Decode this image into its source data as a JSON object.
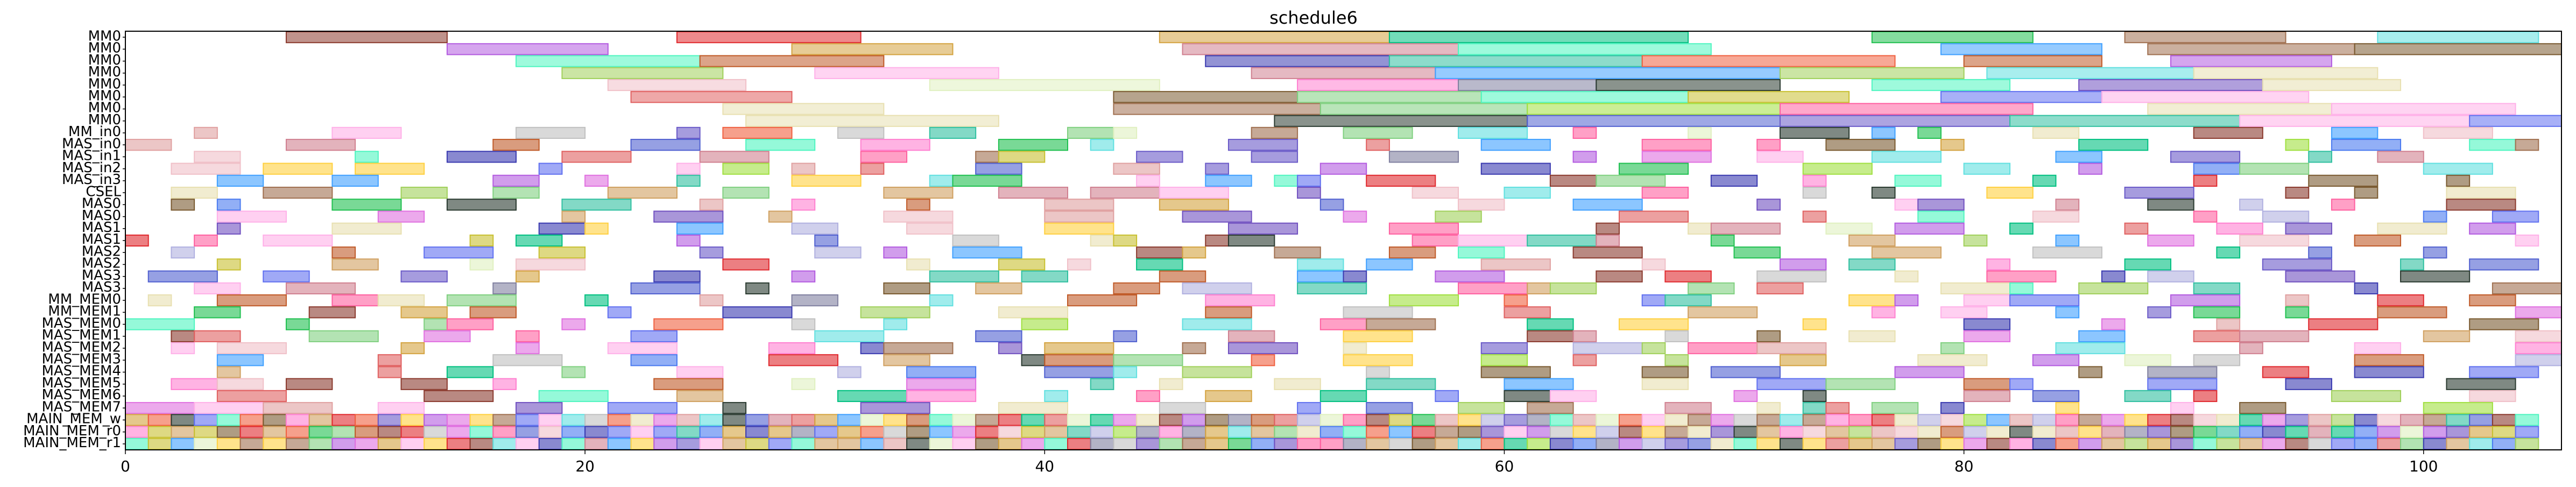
{
  "chart_data": {
    "type": "gantt",
    "title": "schedule6",
    "xlabel": "",
    "ylabel": "",
    "xlim": [
      0,
      106
    ],
    "x_ticks": [
      "0",
      "20",
      "40",
      "60",
      "80",
      "100"
    ],
    "x_tick_values": [
      0,
      20,
      40,
      60,
      80,
      100
    ],
    "grid": false,
    "legend": "none",
    "rows": [
      "MM0",
      "MM0",
      "MM0",
      "MM0",
      "MM0",
      "MM0",
      "MM0",
      "MM0",
      "MM_in0",
      "MAS_in0",
      "MAS_in1",
      "MAS_in2",
      "MAS_in3",
      "CSEL",
      "MAS0",
      "MAS0",
      "MAS1",
      "MAS1",
      "MAS2",
      "MAS2",
      "MAS3",
      "MAS3",
      "MM_MEM0",
      "MM_MEM1",
      "MAS_MEM0",
      "MAS_MEM1",
      "MAS_MEM2",
      "MAS_MEM3",
      "MAS_MEM4",
      "MAS_MEM5",
      "MAS_MEM6",
      "MAS_MEM7",
      "MAIN_MEM_w",
      "MAIN_MEM_r0",
      "MAIN_MEM_r1"
    ],
    "palette": [
      "#8b3a2e",
      "#b35be0",
      "#e0292e",
      "#4ff5c0",
      "#d4a340",
      "#a0d05a",
      "#ffb0e8",
      "#c05a28",
      "#f0c0c8",
      "#3a3ab0",
      "#e06060",
      "#d08090",
      "#ff80d0",
      "#4a7af0",
      "#7a5a30",
      "#e0f0c0",
      "#20c050",
      "#2a3a30",
      "#c8c030",
      "#a0e040",
      "#00c080",
      "#e8e0b0",
      "#5060d0",
      "#6a5ac8",
      "#8080a0",
      "#e0a0a0",
      "#40a0ff",
      "#ff60a0",
      "#60e0e0",
      "#c0c0c0",
      "#a07050",
      "#ffd040",
      "#80d080",
      "#6070f0",
      "#f06040",
      "#7050c0",
      "#30c0a0",
      "#b0b0e0",
      "#d0a060",
      "#e070e0"
    ],
    "bars": [
      [
        0,
        7,
        14,
        0
      ],
      [
        0,
        24,
        32,
        2
      ],
      [
        0,
        45,
        55,
        4
      ],
      [
        0,
        55,
        68,
        20
      ],
      [
        0,
        76,
        83,
        16
      ],
      [
        0,
        87,
        94,
        30
      ],
      [
        0,
        98,
        105,
        28
      ],
      [
        1,
        14,
        21,
        1
      ],
      [
        1,
        29,
        36,
        4
      ],
      [
        1,
        46,
        58,
        11
      ],
      [
        1,
        58,
        69,
        3
      ],
      [
        1,
        79,
        86,
        26
      ],
      [
        1,
        88,
        97,
        30
      ],
      [
        1,
        97,
        106,
        14
      ],
      [
        2,
        17,
        25,
        3
      ],
      [
        2,
        25,
        33,
        7
      ],
      [
        2,
        47,
        55,
        9
      ],
      [
        2,
        55,
        66,
        36
      ],
      [
        2,
        66,
        77,
        34
      ],
      [
        2,
        80,
        86,
        7
      ],
      [
        2,
        89,
        96,
        1
      ],
      [
        3,
        19,
        26,
        5
      ],
      [
        3,
        30,
        38,
        6
      ],
      [
        3,
        49,
        57,
        11
      ],
      [
        3,
        57,
        72,
        26
      ],
      [
        3,
        72,
        80,
        5
      ],
      [
        3,
        81,
        90,
        28
      ],
      [
        3,
        90,
        98,
        21
      ],
      [
        4,
        21,
        27,
        8
      ],
      [
        4,
        35,
        45,
        15
      ],
      [
        4,
        51,
        58,
        12
      ],
      [
        4,
        58,
        64,
        24
      ],
      [
        4,
        64,
        72,
        17
      ],
      [
        4,
        76,
        82,
        3
      ],
      [
        4,
        85,
        93,
        35
      ],
      [
        4,
        93,
        99,
        21
      ],
      [
        5,
        22,
        29,
        10
      ],
      [
        5,
        43,
        51,
        14
      ],
      [
        5,
        51,
        59,
        32
      ],
      [
        5,
        59,
        68,
        3
      ],
      [
        5,
        68,
        75,
        18
      ],
      [
        5,
        79,
        86,
        33
      ],
      [
        5,
        86,
        95,
        6
      ],
      [
        6,
        26,
        33,
        21
      ],
      [
        6,
        43,
        52,
        30
      ],
      [
        6,
        52,
        61,
        32
      ],
      [
        6,
        61,
        72,
        19
      ],
      [
        6,
        72,
        83,
        27
      ],
      [
        6,
        88,
        96,
        21
      ],
      [
        6,
        96,
        104,
        6
      ],
      [
        7,
        27,
        38,
        21
      ],
      [
        7,
        50,
        61,
        17
      ],
      [
        7,
        61,
        72,
        22
      ],
      [
        7,
        72,
        82,
        23
      ],
      [
        7,
        82,
        92,
        36
      ],
      [
        7,
        92,
        102,
        6
      ],
      [
        7,
        102,
        106,
        33
      ]
    ],
    "small_blocks": true,
    "small_block_rows": [
      8,
      9,
      10,
      11,
      12,
      13,
      14,
      15,
      16,
      17,
      18,
      19,
      20,
      21,
      22,
      23,
      24,
      25,
      26,
      27,
      28,
      29,
      30,
      31,
      32,
      33,
      34
    ]
  }
}
